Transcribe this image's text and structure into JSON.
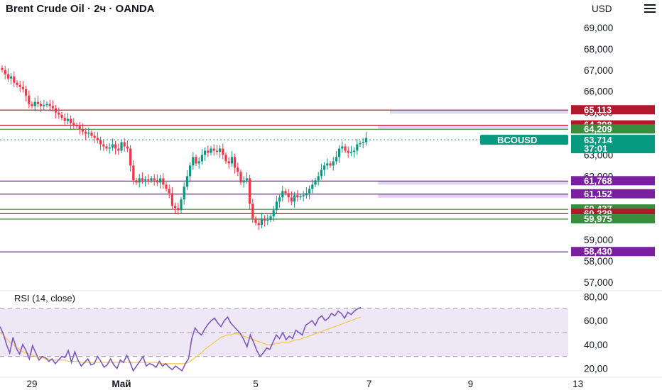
{
  "header": {
    "title": "Brent Crude Oil · 2ч · OANDA",
    "currency": "USD"
  },
  "colors": {
    "up": "#089981",
    "down": "#f23645",
    "red_line": "#b2182b",
    "green_line": "#388e3c",
    "purple_line": "#7b1fa2",
    "rsi_line": "#7e57c2",
    "rsi_ma": "#f9c74f",
    "rsi_band": "#ede7f6"
  },
  "chart_data": [
    {
      "type": "candlestick",
      "title": "Brent Crude Oil · 2ч · OANDA",
      "symbol": "BCOUSD",
      "current_price": "63,714",
      "countdown": "37:01",
      "ylim": [
        56.7,
        69.7
      ],
      "y_ticks": [
        "69,000",
        "68,000",
        "67,000",
        "66,000",
        "65,000",
        "63,000",
        "62,000",
        "59,000",
        "58,000",
        "57,000"
      ],
      "x_ticks": [
        "29",
        "Май",
        "5",
        "7",
        "9",
        "13"
      ],
      "x_tick_indices": [
        10,
        40,
        85,
        123,
        157,
        193
      ],
      "levels": [
        {
          "label": "65,113",
          "value": 65.113,
          "kind": "red",
          "zone_from": 130
        },
        {
          "label": "64,398",
          "value": 64.398,
          "kind": "red",
          "zone_from": 126
        },
        {
          "label": "64,209",
          "value": 64.209,
          "kind": "green",
          "zone_from": null
        },
        {
          "label": "61,768",
          "value": 61.768,
          "kind": "purple",
          "zone_from": 126
        },
        {
          "label": "61,152",
          "value": 61.152,
          "kind": "purple",
          "zone_from": 126
        },
        {
          "label": "60,437",
          "value": 60.437,
          "kind": "green",
          "zone_from": null
        },
        {
          "label": "60,229",
          "value": 60.229,
          "kind": "red",
          "zone_from": null
        },
        {
          "label": "59,975",
          "value": 59.975,
          "kind": "green",
          "zone_from": null
        },
        {
          "label": "58,430",
          "value": 58.43,
          "kind": "purple",
          "zone_from": null
        }
      ],
      "closes": [
        67.0,
        66.8,
        66.6,
        66.7,
        66.4,
        66.3,
        66.2,
        66.1,
        65.8,
        65.4,
        65.3,
        65.5,
        65.4,
        65.3,
        65.35,
        65.4,
        65.3,
        65.2,
        65.0,
        64.9,
        64.75,
        64.6,
        64.7,
        64.5,
        64.4,
        64.35,
        64.2,
        64.1,
        64.0,
        64.05,
        63.9,
        63.8,
        63.7,
        63.5,
        63.4,
        63.3,
        63.35,
        63.5,
        63.3,
        63.2,
        63.6,
        63.4,
        63.3,
        62.5,
        61.8,
        61.7,
        61.9,
        61.8,
        61.85,
        61.8,
        61.9,
        61.8,
        61.7,
        61.9,
        61.6,
        61.4,
        61.2,
        60.6,
        60.5,
        60.4,
        60.9,
        61.5,
        62.0,
        62.5,
        62.9,
        62.6,
        62.7,
        63.0,
        63.2,
        63.1,
        63.3,
        63.2,
        63.15,
        63.3,
        63.0,
        62.7,
        62.6,
        62.9,
        62.4,
        62.2,
        61.7,
        61.8,
        61.9,
        60.7,
        60.0,
        59.8,
        59.7,
        60.0,
        59.9,
        59.95,
        60.1,
        60.4,
        60.8,
        61.0,
        61.3,
        61.2,
        61.0,
        60.8,
        61.1,
        61.0,
        61.05,
        61.1,
        61.2,
        61.4,
        61.6,
        61.8,
        62.0,
        62.3,
        62.5,
        62.6,
        62.5,
        62.7,
        62.9,
        63.3,
        63.4,
        63.2,
        63.1,
        63.15,
        63.2,
        63.5,
        63.55,
        63.6,
        63.8
      ],
      "rsi": {
        "title": "RSI (14, close)",
        "ylim": [
          15,
          85
        ],
        "y_ticks": [
          "80,00",
          "60,00",
          "40,00",
          "20,00"
        ],
        "upper": 70,
        "middle": 50,
        "lower": 30,
        "values": [
          55,
          49,
          40,
          33,
          46,
          37,
          32,
          40,
          35,
          28,
          39,
          33,
          27,
          30,
          29,
          26,
          28,
          24,
          27,
          30,
          29,
          35,
          25,
          34,
          27,
          22,
          25,
          28,
          23,
          24,
          30,
          26,
          21,
          23,
          28,
          23,
          20,
          27,
          25,
          31,
          25,
          18,
          22,
          26,
          30,
          22,
          24,
          23,
          21,
          26,
          22,
          24,
          21,
          19,
          22,
          20,
          18,
          24,
          28,
          45,
          54,
          50,
          48,
          53,
          57,
          60,
          62,
          58,
          55,
          60,
          63,
          58,
          55,
          52,
          49,
          44,
          38,
          48,
          42,
          35,
          30,
          33,
          37,
          36,
          42,
          48,
          45,
          50,
          44,
          47,
          45,
          52,
          50,
          48,
          56,
          58,
          60,
          56,
          62,
          64,
          60,
          62,
          66,
          64,
          68,
          66,
          62,
          67,
          65,
          68,
          70,
          71
        ],
        "ma": [
          50,
          48,
          45,
          42,
          40,
          38,
          36,
          34,
          33,
          32,
          31,
          30,
          29,
          29,
          28,
          28,
          27,
          27,
          27,
          27,
          27,
          26,
          26,
          26,
          26,
          25,
          25,
          25,
          25,
          25,
          25,
          25,
          25,
          25,
          25,
          25,
          25,
          25,
          25,
          25,
          25,
          25,
          25,
          25,
          25,
          25,
          25,
          25,
          25,
          24,
          24,
          24,
          24,
          24,
          24,
          24,
          24,
          24,
          25,
          27,
          29,
          31,
          33,
          36,
          38,
          40,
          42,
          44,
          46,
          47,
          48,
          48,
          49,
          49,
          48,
          47,
          46,
          45,
          44,
          43,
          42,
          41,
          40,
          40,
          40,
          41,
          41,
          42,
          42,
          42,
          43,
          44,
          44,
          45,
          46,
          47,
          48,
          49,
          50,
          51,
          52,
          53,
          54,
          55,
          56,
          57,
          58,
          59,
          60,
          61,
          62,
          63
        ]
      }
    }
  ]
}
